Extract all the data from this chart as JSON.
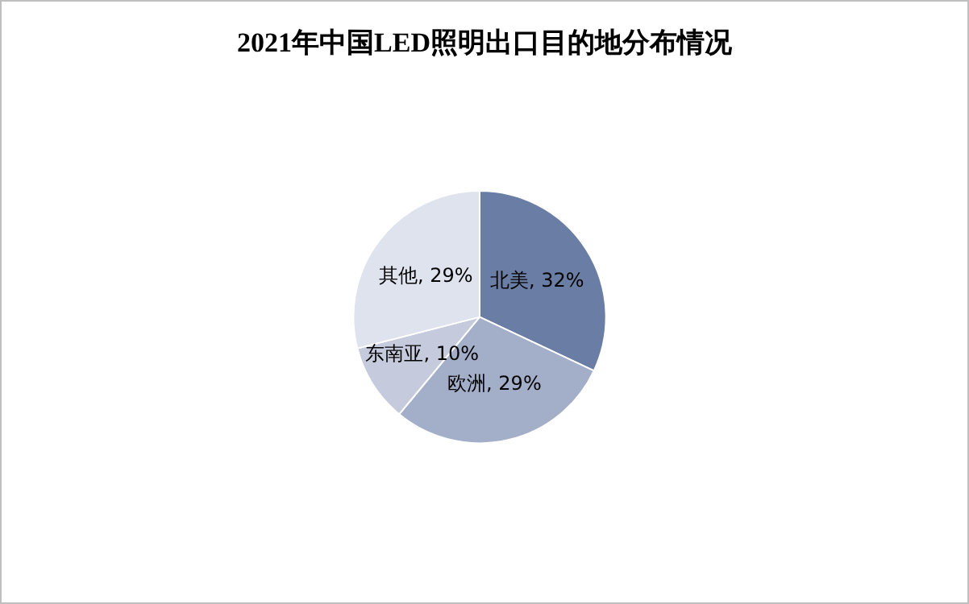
{
  "chart_data": {
    "type": "pie",
    "title": "2021年中国LED照明出口目的地分布情况",
    "categories": [
      "北美",
      "欧洲",
      "东南亚",
      "其他"
    ],
    "values": [
      32,
      29,
      10,
      29
    ],
    "value_labels": [
      "32%",
      "29%",
      "10%",
      "29%"
    ],
    "colors": [
      "#6a7ea5",
      "#a3aec8",
      "#c5cbdd",
      "#dfe3ee"
    ],
    "legend": false
  }
}
